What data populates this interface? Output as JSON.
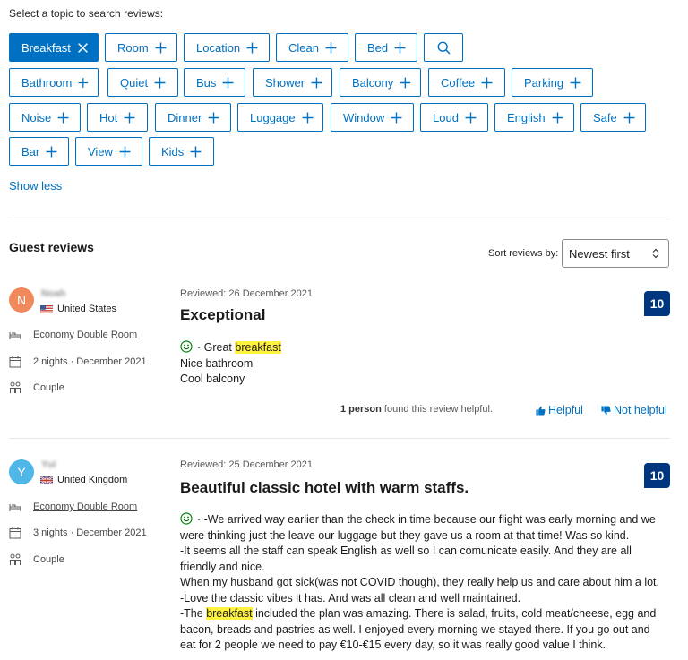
{
  "topics": {
    "label": "Select a topic to search reviews:",
    "rows": [
      [
        {
          "label": "Breakfast",
          "active": true
        },
        {
          "label": "Room"
        },
        {
          "label": "Location"
        },
        {
          "label": "Clean"
        },
        {
          "label": "Bed"
        }
      ],
      [
        {
          "label": "Bathroom"
        },
        {
          "label": "Quiet"
        },
        {
          "label": "Bus"
        },
        {
          "label": "Shower"
        },
        {
          "label": "Balcony"
        },
        {
          "label": "Coffee"
        },
        {
          "label": "Parking"
        }
      ],
      [
        {
          "label": "Noise"
        },
        {
          "label": "Hot"
        },
        {
          "label": "Dinner"
        },
        {
          "label": "Luggage"
        },
        {
          "label": "Window"
        },
        {
          "label": "Loud"
        },
        {
          "label": "English"
        },
        {
          "label": "Safe"
        }
      ],
      [
        {
          "label": "Bar"
        },
        {
          "label": "View"
        },
        {
          "label": "Kids"
        }
      ]
    ],
    "show_less": "Show less"
  },
  "reviews_header": {
    "title": "Guest reviews",
    "sort_label": "Sort reviews by:",
    "sort_value": "Newest first"
  },
  "reviews": [
    {
      "initial": "N",
      "name": "Noah",
      "country": "United States",
      "room": "Economy Double Room",
      "stay": "2 nights · December 2021",
      "traveler_type": "Couple",
      "reviewed": "Reviewed: 26 December 2021",
      "title": "Exceptional",
      "score": "10",
      "positive_prefix": "· Great ",
      "highlight": "breakfast",
      "lines": [
        "Nice bathroom",
        "Cool balcony"
      ],
      "helpful_count": "1 person",
      "helpful_suffix": " found this review helpful.",
      "helpful_label": "Helpful",
      "not_helpful_label": "Not helpful"
    },
    {
      "initial": "Y",
      "name": "Yui",
      "country": "United Kingdom",
      "room": "Economy Double Room",
      "stay": "3 nights · December 2021",
      "traveler_type": "Couple",
      "reviewed": "Reviewed: 25 December 2021",
      "title": "Beautiful classic hotel with warm staffs.",
      "score": "10",
      "body_first": "· -We arrived way earlier than the check in time because our flight was early morning and we were thinking just the leave our luggage but they gave us a room at that time! Was so kind.",
      "body_lines": [
        "-It seems all the staff can speak English as well so I can comunicate easily. And they are all friendly and nice.",
        "When my husband got sick(was not COVID though), they really help us and care about him a lot.",
        "-Love the classic vibes it has. And was all clean and well maintained."
      ],
      "body_last_prefix": "-The ",
      "highlight": "breakfast",
      "body_last_suffix": " included the plan was amazing. There is salad, fruits, cold meat/cheese, egg and bacon, breads and pastries as well. I enjoyed every morning we stayed there. If you go out and eat for 2 people we need to pay €10-€15 every day, so it was really good value I think."
    }
  ],
  "colors": {
    "accent": "#0071c2",
    "score_bg": "#003580",
    "highlight": "#fff23f",
    "avatar_1": "#f08a5d",
    "avatar_2": "#4fb6e8"
  }
}
